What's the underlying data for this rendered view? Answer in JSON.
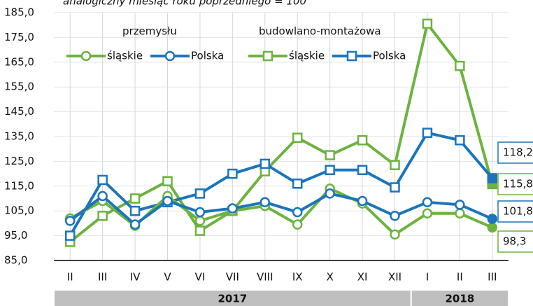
{
  "chart_data": {
    "type": "line",
    "title": "analogiczny miesiąc roku poprzedniego = 100",
    "legend_groups": [
      "przemysłu",
      "budowlano-montażowa"
    ],
    "categories": [
      "II",
      "III",
      "IV",
      "V",
      "VI",
      "VII",
      "VIII",
      "IX",
      "X",
      "XI",
      "XII",
      "I",
      "II",
      "III"
    ],
    "year_groups": [
      {
        "label": "2017",
        "span": 11
      },
      {
        "label": "2018",
        "span": 3
      }
    ],
    "series": [
      {
        "name": "śląskie",
        "group": "przemysłu",
        "marker": "circle",
        "color": "#6cb33f",
        "values": [
          102,
          109,
          99,
          111,
          101,
          105,
          107,
          99.5,
          114,
          108,
          95.5,
          104,
          104,
          98.3
        ],
        "value_labels": [
          null,
          null,
          null,
          null,
          null,
          null,
          null,
          null,
          null,
          null,
          null,
          null,
          null,
          "98,3"
        ]
      },
      {
        "name": "Polska",
        "group": "przemysłu",
        "marker": "circle",
        "color": "#1b75bb",
        "values": [
          101,
          111,
          99.5,
          109,
          104.5,
          106,
          108.5,
          104.5,
          112,
          109,
          103,
          108.5,
          107.5,
          101.8
        ],
        "value_labels": [
          null,
          null,
          null,
          null,
          null,
          null,
          null,
          null,
          null,
          null,
          null,
          null,
          null,
          "101,8"
        ]
      },
      {
        "name": "śląskie",
        "group": "budowlano-montażowa",
        "marker": "square",
        "color": "#6cb33f",
        "values": [
          92.5,
          103,
          110,
          117,
          97,
          105,
          121,
          134.5,
          127.5,
          133.5,
          123.5,
          180.5,
          163.5,
          115.8
        ],
        "value_labels": [
          null,
          null,
          null,
          null,
          null,
          null,
          null,
          null,
          null,
          null,
          null,
          null,
          null,
          "115,8"
        ]
      },
      {
        "name": "Polska",
        "group": "budowlano-montażowa",
        "marker": "square",
        "color": "#1b75bb",
        "values": [
          95,
          117.5,
          105,
          108.5,
          112,
          120,
          124,
          116,
          121.5,
          121.5,
          114.5,
          136.5,
          133.5,
          118.2
        ],
        "value_labels": [
          null,
          null,
          null,
          null,
          null,
          null,
          null,
          null,
          null,
          null,
          null,
          null,
          null,
          "118,2"
        ]
      }
    ],
    "ylim": [
      85,
      185
    ],
    "yticks": [
      {
        "value": 85,
        "label": "85,0"
      },
      {
        "value": 95,
        "label": "95,0"
      },
      {
        "value": 105,
        "label": "105,0"
      },
      {
        "value": 115,
        "label": "115,0"
      },
      {
        "value": 125,
        "label": "125,0"
      },
      {
        "value": 135,
        "label": "135,0"
      },
      {
        "value": 145,
        "label": "145,0"
      },
      {
        "value": 155,
        "label": "155,0"
      },
      {
        "value": 165,
        "label": "165,0"
      },
      {
        "value": 175,
        "label": "175,0"
      },
      {
        "value": 185,
        "label": "185,0"
      }
    ],
    "grid": true
  }
}
